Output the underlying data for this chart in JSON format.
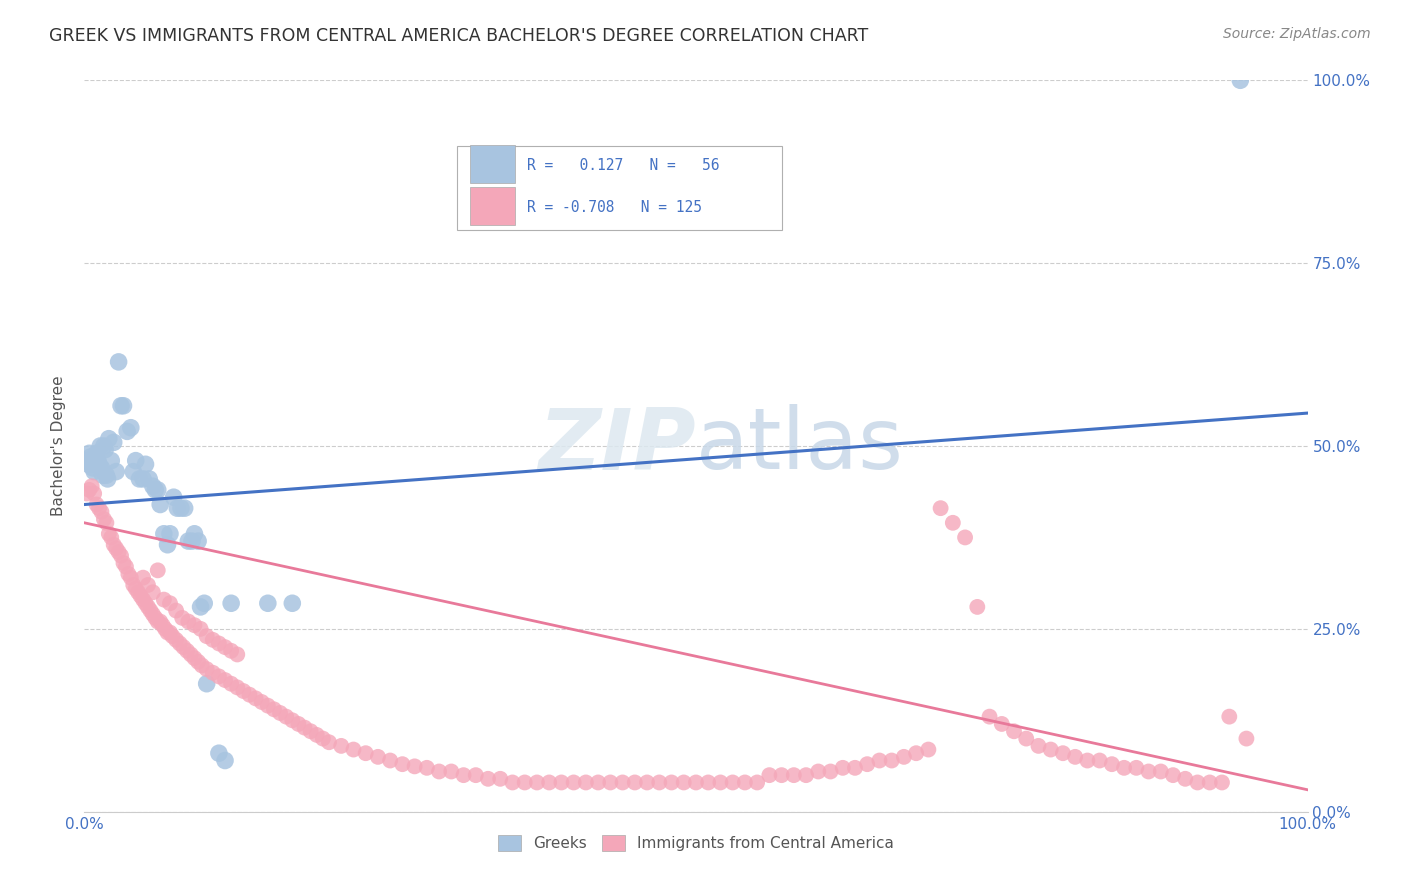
{
  "title": "GREEK VS IMMIGRANTS FROM CENTRAL AMERICA BACHELOR'S DEGREE CORRELATION CHART",
  "source": "Source: ZipAtlas.com",
  "ylabel": "Bachelor's Degree",
  "xlim": [
    0.0,
    1.0
  ],
  "ylim": [
    0.0,
    1.0
  ],
  "blue_color": "#a8c4e0",
  "pink_color": "#f4a7b9",
  "blue_line_color": "#4472c4",
  "pink_line_color": "#e8799a",
  "legend_text_color": "#4472c4",
  "background_color": "#ffffff",
  "grid_color": "#c8c8c8",
  "watermark_color": "#e0e8f0",
  "blue_line_start_y": 0.42,
  "blue_line_end_y": 0.545,
  "pink_line_start_y": 0.395,
  "pink_line_end_y": 0.03,
  "greek_points": [
    [
      0.002,
      0.48
    ],
    [
      0.003,
      0.475
    ],
    [
      0.004,
      0.49
    ],
    [
      0.005,
      0.485
    ],
    [
      0.006,
      0.475
    ],
    [
      0.007,
      0.47
    ],
    [
      0.008,
      0.465
    ],
    [
      0.009,
      0.485
    ],
    [
      0.01,
      0.49
    ],
    [
      0.011,
      0.48
    ],
    [
      0.012,
      0.475
    ],
    [
      0.013,
      0.5
    ],
    [
      0.014,
      0.47
    ],
    [
      0.015,
      0.46
    ],
    [
      0.016,
      0.5
    ],
    [
      0.017,
      0.495
    ],
    [
      0.018,
      0.46
    ],
    [
      0.019,
      0.455
    ],
    [
      0.02,
      0.51
    ],
    [
      0.022,
      0.48
    ],
    [
      0.024,
      0.505
    ],
    [
      0.026,
      0.465
    ],
    [
      0.028,
      0.615
    ],
    [
      0.03,
      0.555
    ],
    [
      0.032,
      0.555
    ],
    [
      0.035,
      0.52
    ],
    [
      0.038,
      0.525
    ],
    [
      0.04,
      0.465
    ],
    [
      0.042,
      0.48
    ],
    [
      0.045,
      0.455
    ],
    [
      0.048,
      0.455
    ],
    [
      0.05,
      0.475
    ],
    [
      0.053,
      0.455
    ],
    [
      0.056,
      0.445
    ],
    [
      0.058,
      0.44
    ],
    [
      0.06,
      0.44
    ],
    [
      0.062,
      0.42
    ],
    [
      0.065,
      0.38
    ],
    [
      0.068,
      0.365
    ],
    [
      0.07,
      0.38
    ],
    [
      0.073,
      0.43
    ],
    [
      0.076,
      0.415
    ],
    [
      0.079,
      0.415
    ],
    [
      0.082,
      0.415
    ],
    [
      0.085,
      0.37
    ],
    [
      0.088,
      0.37
    ],
    [
      0.09,
      0.38
    ],
    [
      0.093,
      0.37
    ],
    [
      0.095,
      0.28
    ],
    [
      0.098,
      0.285
    ],
    [
      0.1,
      0.175
    ],
    [
      0.11,
      0.08
    ],
    [
      0.115,
      0.07
    ],
    [
      0.12,
      0.285
    ],
    [
      0.15,
      0.285
    ],
    [
      0.17,
      0.285
    ],
    [
      0.945,
      1.0
    ]
  ],
  "central_america_points": [
    [
      0.002,
      0.435
    ],
    [
      0.004,
      0.44
    ],
    [
      0.006,
      0.445
    ],
    [
      0.008,
      0.435
    ],
    [
      0.01,
      0.42
    ],
    [
      0.012,
      0.415
    ],
    [
      0.014,
      0.41
    ],
    [
      0.016,
      0.4
    ],
    [
      0.018,
      0.395
    ],
    [
      0.02,
      0.38
    ],
    [
      0.022,
      0.375
    ],
    [
      0.024,
      0.365
    ],
    [
      0.026,
      0.36
    ],
    [
      0.028,
      0.355
    ],
    [
      0.03,
      0.35
    ],
    [
      0.032,
      0.34
    ],
    [
      0.034,
      0.335
    ],
    [
      0.036,
      0.325
    ],
    [
      0.038,
      0.32
    ],
    [
      0.04,
      0.31
    ],
    [
      0.042,
      0.305
    ],
    [
      0.044,
      0.3
    ],
    [
      0.046,
      0.295
    ],
    [
      0.048,
      0.29
    ],
    [
      0.05,
      0.285
    ],
    [
      0.052,
      0.28
    ],
    [
      0.054,
      0.275
    ],
    [
      0.056,
      0.27
    ],
    [
      0.058,
      0.265
    ],
    [
      0.06,
      0.26
    ],
    [
      0.062,
      0.26
    ],
    [
      0.064,
      0.255
    ],
    [
      0.066,
      0.25
    ],
    [
      0.068,
      0.245
    ],
    [
      0.07,
      0.245
    ],
    [
      0.072,
      0.24
    ],
    [
      0.075,
      0.235
    ],
    [
      0.078,
      0.23
    ],
    [
      0.081,
      0.225
    ],
    [
      0.084,
      0.22
    ],
    [
      0.087,
      0.215
    ],
    [
      0.09,
      0.21
    ],
    [
      0.093,
      0.205
    ],
    [
      0.096,
      0.2
    ],
    [
      0.1,
      0.195
    ],
    [
      0.105,
      0.19
    ],
    [
      0.11,
      0.185
    ],
    [
      0.115,
      0.18
    ],
    [
      0.12,
      0.175
    ],
    [
      0.125,
      0.17
    ],
    [
      0.13,
      0.165
    ],
    [
      0.135,
      0.16
    ],
    [
      0.14,
      0.155
    ],
    [
      0.145,
      0.15
    ],
    [
      0.15,
      0.145
    ],
    [
      0.155,
      0.14
    ],
    [
      0.16,
      0.135
    ],
    [
      0.165,
      0.13
    ],
    [
      0.17,
      0.125
    ],
    [
      0.175,
      0.12
    ],
    [
      0.18,
      0.115
    ],
    [
      0.185,
      0.11
    ],
    [
      0.19,
      0.105
    ],
    [
      0.195,
      0.1
    ],
    [
      0.2,
      0.095
    ],
    [
      0.21,
      0.09
    ],
    [
      0.22,
      0.085
    ],
    [
      0.23,
      0.08
    ],
    [
      0.24,
      0.075
    ],
    [
      0.25,
      0.07
    ],
    [
      0.26,
      0.065
    ],
    [
      0.27,
      0.062
    ],
    [
      0.28,
      0.06
    ],
    [
      0.29,
      0.055
    ],
    [
      0.3,
      0.055
    ],
    [
      0.31,
      0.05
    ],
    [
      0.32,
      0.05
    ],
    [
      0.33,
      0.045
    ],
    [
      0.34,
      0.045
    ],
    [
      0.35,
      0.04
    ],
    [
      0.36,
      0.04
    ],
    [
      0.37,
      0.04
    ],
    [
      0.38,
      0.04
    ],
    [
      0.39,
      0.04
    ],
    [
      0.4,
      0.04
    ],
    [
      0.41,
      0.04
    ],
    [
      0.42,
      0.04
    ],
    [
      0.43,
      0.04
    ],
    [
      0.44,
      0.04
    ],
    [
      0.45,
      0.04
    ],
    [
      0.46,
      0.04
    ],
    [
      0.47,
      0.04
    ],
    [
      0.48,
      0.04
    ],
    [
      0.49,
      0.04
    ],
    [
      0.5,
      0.04
    ],
    [
      0.51,
      0.04
    ],
    [
      0.52,
      0.04
    ],
    [
      0.53,
      0.04
    ],
    [
      0.54,
      0.04
    ],
    [
      0.55,
      0.04
    ],
    [
      0.56,
      0.05
    ],
    [
      0.57,
      0.05
    ],
    [
      0.58,
      0.05
    ],
    [
      0.59,
      0.05
    ],
    [
      0.6,
      0.055
    ],
    [
      0.61,
      0.055
    ],
    [
      0.62,
      0.06
    ],
    [
      0.63,
      0.06
    ],
    [
      0.64,
      0.065
    ],
    [
      0.65,
      0.07
    ],
    [
      0.66,
      0.07
    ],
    [
      0.67,
      0.075
    ],
    [
      0.68,
      0.08
    ],
    [
      0.69,
      0.085
    ],
    [
      0.7,
      0.415
    ],
    [
      0.71,
      0.395
    ],
    [
      0.72,
      0.375
    ],
    [
      0.73,
      0.28
    ],
    [
      0.74,
      0.13
    ],
    [
      0.75,
      0.12
    ],
    [
      0.76,
      0.11
    ],
    [
      0.77,
      0.1
    ],
    [
      0.78,
      0.09
    ],
    [
      0.79,
      0.085
    ],
    [
      0.8,
      0.08
    ],
    [
      0.81,
      0.075
    ],
    [
      0.82,
      0.07
    ],
    [
      0.83,
      0.07
    ],
    [
      0.84,
      0.065
    ],
    [
      0.85,
      0.06
    ],
    [
      0.86,
      0.06
    ],
    [
      0.87,
      0.055
    ],
    [
      0.88,
      0.055
    ],
    [
      0.89,
      0.05
    ],
    [
      0.9,
      0.045
    ],
    [
      0.91,
      0.04
    ],
    [
      0.92,
      0.04
    ],
    [
      0.93,
      0.04
    ],
    [
      0.936,
      0.13
    ],
    [
      0.95,
      0.1
    ],
    [
      0.048,
      0.32
    ],
    [
      0.052,
      0.31
    ],
    [
      0.056,
      0.3
    ],
    [
      0.06,
      0.33
    ],
    [
      0.065,
      0.29
    ],
    [
      0.07,
      0.285
    ],
    [
      0.075,
      0.275
    ],
    [
      0.08,
      0.265
    ],
    [
      0.085,
      0.26
    ],
    [
      0.09,
      0.255
    ],
    [
      0.095,
      0.25
    ],
    [
      0.1,
      0.24
    ],
    [
      0.105,
      0.235
    ],
    [
      0.11,
      0.23
    ],
    [
      0.115,
      0.225
    ],
    [
      0.12,
      0.22
    ],
    [
      0.125,
      0.215
    ]
  ]
}
